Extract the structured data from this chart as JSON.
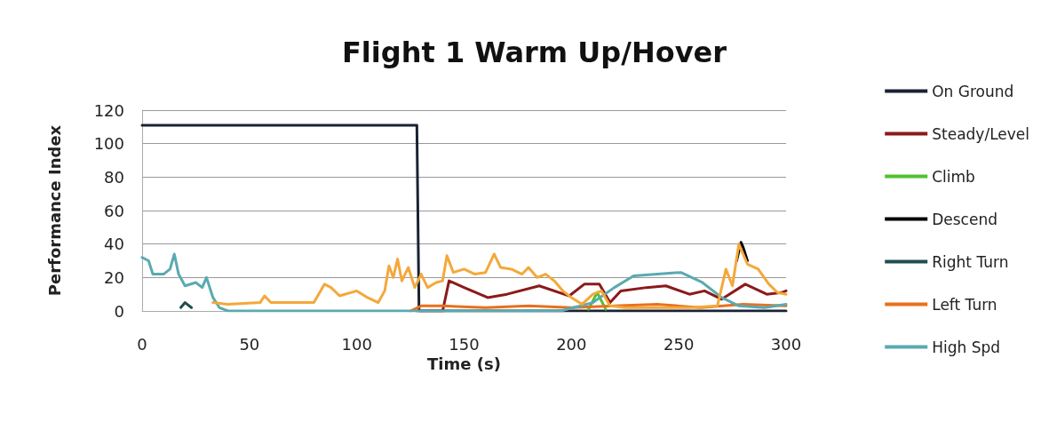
{
  "chart_data": {
    "type": "line",
    "title": "Flight 1 Warm Up/Hover",
    "xlabel": "Time (s)",
    "ylabel": "Performance Index",
    "xlim": [
      0,
      300
    ],
    "xticks": [
      0,
      50,
      100,
      150,
      200,
      250,
      300
    ],
    "ylim": [
      0,
      120
    ],
    "yticks": [
      0,
      20,
      40,
      60,
      80,
      100,
      120
    ],
    "grid": "y",
    "legend": "right",
    "marker": "none",
    "line_style": "solid",
    "series": [
      {
        "name": "On Ground",
        "color": "#1a2233",
        "x": [
          0,
          128,
          129,
          300
        ],
        "values": [
          111,
          111,
          0,
          0
        ]
      },
      {
        "name": "Steady/Level",
        "color": "#8b1a1a",
        "x": [
          128,
          140,
          143,
          150,
          161,
          170,
          185,
          199,
          206,
          213,
          218,
          223,
          235,
          244,
          255,
          262,
          270,
          281,
          291,
          298,
          300
        ],
        "values": [
          0,
          0,
          18,
          14,
          8,
          10,
          15,
          9,
          16,
          16,
          5,
          12,
          14,
          15,
          10,
          12,
          7,
          16,
          10,
          11,
          12
        ]
      },
      {
        "name": "Climb",
        "color": "#50c030",
        "x": [
          208,
          212,
          216
        ],
        "values": [
          1,
          11,
          1
        ]
      },
      {
        "name": "Descend",
        "color": "#000000",
        "x": [
          277,
          279,
          280,
          282
        ],
        "values": [
          30,
          41,
          38,
          30
        ]
      },
      {
        "name": "Right Turn",
        "color": "#1f4e50",
        "x": [
          18,
          20,
          23
        ],
        "values": [
          2,
          5,
          2
        ]
      },
      {
        "name": "Left Turn",
        "color": "#e8701e",
        "x": [
          125,
          130,
          140,
          160,
          180,
          200,
          220,
          240,
          260,
          280,
          300
        ],
        "values": [
          0,
          3,
          3,
          2,
          3,
          2,
          3,
          4,
          2,
          4,
          3
        ]
      },
      {
        "name": "High Spd",
        "color": "#5aaab0",
        "x": [
          0,
          3,
          5,
          10,
          13,
          15,
          17,
          20,
          25,
          28,
          30,
          33,
          36,
          40,
          195,
          201,
          210,
          220,
          229,
          240,
          251,
          261,
          270,
          278,
          290,
          300
        ],
        "values": [
          32,
          30,
          22,
          22,
          25,
          34,
          22,
          15,
          17,
          14,
          20,
          8,
          2,
          0,
          0,
          2,
          5,
          14,
          21,
          22,
          23,
          17,
          8,
          3,
          2,
          4
        ]
      },
      {
        "color": "#f4a83a",
        "x": [
          33,
          40,
          55,
          57,
          60,
          80,
          85,
          88,
          92,
          100,
          105,
          110,
          113,
          115,
          117,
          119,
          121,
          124,
          127,
          130,
          133,
          137,
          140,
          142,
          145,
          150,
          155,
          160,
          164,
          167,
          172,
          177,
          180,
          184,
          188,
          192,
          196,
          200,
          205,
          210,
          214,
          218,
          225,
          240,
          255,
          268,
          272,
          275,
          278,
          282,
          287,
          292,
          296,
          300
        ],
        "values": [
          5,
          4,
          5,
          9,
          5,
          5,
          16,
          14,
          9,
          12,
          8,
          5,
          12,
          27,
          20,
          31,
          18,
          26,
          14,
          22,
          14,
          17,
          18,
          33,
          23,
          25,
          22,
          23,
          34,
          26,
          25,
          22,
          26,
          20,
          22,
          18,
          12,
          8,
          4,
          10,
          12,
          3,
          2,
          2,
          2,
          3,
          25,
          15,
          40,
          28,
          25,
          16,
          11,
          10
        ]
      }
    ]
  }
}
